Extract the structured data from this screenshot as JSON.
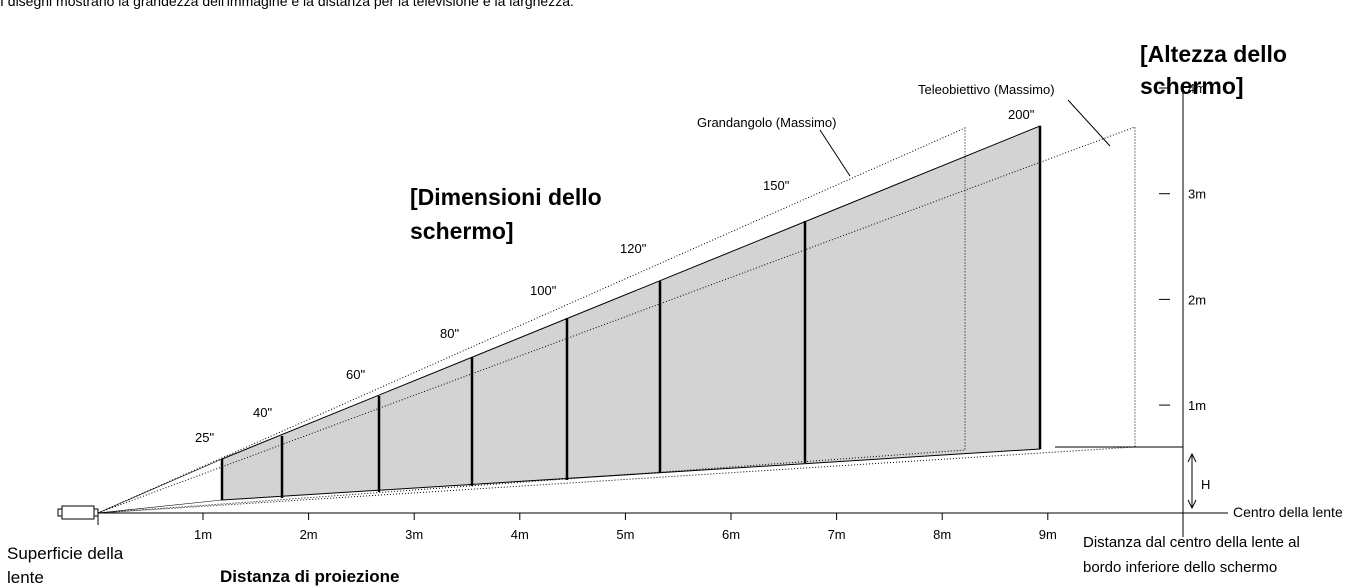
{
  "intro": "I disegni mostrano la grandezza dell'immagine e la distanza per la televisione e la larghezza.",
  "screen_size_heading": [
    "[Dimensioni dello",
    "schermo]"
  ],
  "screen_height_heading": [
    "[Altezza dello",
    "schermo]"
  ],
  "wide_label": "Grandangolo (Massimo)",
  "tele_label": "Teleobiettivo (Massimo)",
  "screen_sizes": [
    "25\"",
    "40\"",
    "60\"",
    "80\"",
    "100\"",
    "120\"",
    "150\"",
    "200\""
  ],
  "distance_ticks": [
    "1m",
    "2m",
    "3m",
    "4m",
    "5m",
    "6m",
    "7m",
    "8m",
    "9m"
  ],
  "height_ticks": [
    "4m",
    "3m",
    "2m",
    "1m"
  ],
  "h_label": "H",
  "lens_center": "Centro della lente",
  "lens_surface": [
    "Superficie della",
    "lente"
  ],
  "distance_axis": "Distanza di proiezione",
  "offset_note": [
    "Distanza dal centro della lente al",
    "bordo inferiore dello schermo"
  ]
}
